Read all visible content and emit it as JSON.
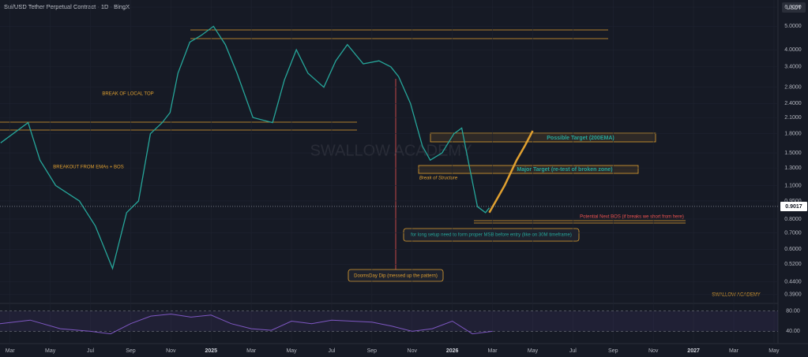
{
  "chart_data": {
    "type": "line",
    "title": "Sui/USD Tether Perpetual Contract · 1D · BingX",
    "currency": "USDT",
    "log_scale": true,
    "grid": true,
    "xlim": [
      1.5,
      40.2
    ],
    "xticks": [
      {
        "value": 2,
        "label": "Mar"
      },
      {
        "value": 4,
        "label": "May"
      },
      {
        "value": 6,
        "label": "Jul"
      },
      {
        "value": 8,
        "label": "Sep"
      },
      {
        "value": 10,
        "label": "Nov"
      },
      {
        "value": 12,
        "label": "2025"
      },
      {
        "value": 14,
        "label": "Mar"
      },
      {
        "value": 16,
        "label": "May"
      },
      {
        "value": 18,
        "label": "Jul"
      },
      {
        "value": 20,
        "label": "Sep"
      },
      {
        "value": 22,
        "label": "Nov"
      },
      {
        "value": 24,
        "label": "2026"
      },
      {
        "value": 26,
        "label": "Mar"
      },
      {
        "value": 28,
        "label": "May"
      },
      {
        "value": 30,
        "label": "Jul"
      },
      {
        "value": 32,
        "label": "Sep"
      },
      {
        "value": 34,
        "label": "Nov"
      },
      {
        "value": 36,
        "label": "2027"
      },
      {
        "value": 38,
        "label": "Mar"
      },
      {
        "value": 40,
        "label": "May"
      }
    ],
    "ylim": [
      0.364,
      6.42
    ],
    "yticks": [
      {
        "value": 6,
        "label": "6.0000"
      },
      {
        "value": 5,
        "label": "5.0000"
      },
      {
        "value": 4,
        "label": "4.0000"
      },
      {
        "value": 3.4,
        "label": "3.4000"
      },
      {
        "value": 2.8,
        "label": "2.8000"
      },
      {
        "value": 2.4,
        "label": "2.4000"
      },
      {
        "value": 2.1,
        "label": "2.1000"
      },
      {
        "value": 1.8,
        "label": "1.8000"
      },
      {
        "value": 1.5,
        "label": "1.5000"
      },
      {
        "value": 1.3,
        "label": "1.3000"
      },
      {
        "value": 1.1,
        "label": "1.1000"
      },
      {
        "value": 0.95,
        "label": "0.9500"
      },
      {
        "value": 0.8,
        "label": "0.8000"
      },
      {
        "value": 0.7,
        "label": "0.7000"
      },
      {
        "value": 0.6,
        "label": "0.6000"
      },
      {
        "value": 0.52,
        "label": "0.5200"
      },
      {
        "value": 0.44,
        "label": "0.4400"
      },
      {
        "value": 0.39,
        "label": "0.3900"
      }
    ],
    "current_price": {
      "value": 0.9017,
      "label": "0.9017"
    },
    "series": [
      {
        "color": "#26a69a",
        "x": [
          1.53,
          2.9,
          3.49,
          4.27,
          5.45,
          6.24,
          7.1,
          7.8,
          8.39,
          8.98,
          9.57,
          9.96,
          10.35,
          10.94,
          11.53,
          12.12,
          12.71,
          13.29,
          14.08,
          15.06,
          15.65,
          16.24,
          16.82,
          17.61,
          18.2,
          18.78,
          19.57,
          20.35,
          20.94,
          21.33,
          21.92,
          22.51,
          22.9,
          23.49,
          24.08,
          24.47,
          24.86,
          25.25,
          25.65,
          25.84
        ],
        "values": [
          1.65,
          2.0,
          1.4,
          1.1,
          0.95,
          0.75,
          0.5,
          0.85,
          0.95,
          1.8,
          2.0,
          2.2,
          3.2,
          4.3,
          4.6,
          5.0,
          4.2,
          3.2,
          2.1,
          2.0,
          3.0,
          4.0,
          3.2,
          2.8,
          3.6,
          4.2,
          3.5,
          3.6,
          3.4,
          3.1,
          2.4,
          1.6,
          1.4,
          1.5,
          1.8,
          1.9,
          1.3,
          0.9,
          0.85,
          0.89
        ]
      },
      {
        "color": "#e0a030",
        "x": [
          25.84,
          26.6,
          27.2,
          27.6,
          28.0
        ],
        "values": [
          0.85,
          1.1,
          1.4,
          1.6,
          1.85
        ]
      }
    ],
    "rsi": {
      "color": "#7e57c2",
      "ylim": [
        25,
        95
      ],
      "yticks": [
        {
          "value": 80,
          "label": "80.00"
        },
        {
          "value": 40,
          "label": "40.00"
        }
      ],
      "x": [
        1.5,
        3,
        4.5,
        6,
        7,
        8,
        9,
        10,
        11,
        12,
        13,
        14,
        15,
        16,
        17,
        18,
        19,
        20,
        21,
        22,
        23,
        24,
        25,
        26
      ],
      "values": [
        55,
        62,
        45,
        40,
        35,
        55,
        70,
        74,
        68,
        72,
        55,
        45,
        42,
        60,
        55,
        62,
        60,
        58,
        50,
        40,
        45,
        60,
        35,
        40
      ]
    },
    "annotations": [
      "BREAK OF LOCAL TOP",
      "BREAKOUT FROM EMAs + BOS",
      "Possible Target (200EMA)",
      "Major Target (re-test of broken zone)",
      "Break of Structure",
      "Potential Next BOS (if breaks we short from here)",
      "for long setup need to form proper MSB before entry (like on 30M timeframe)",
      "DoomsDay Dip (messed up the pattern)"
    ],
    "watermark": "SWALLOW ACADEMY"
  }
}
